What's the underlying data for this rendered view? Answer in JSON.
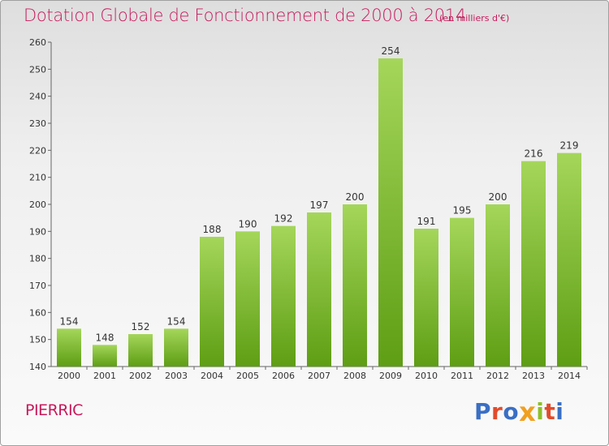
{
  "header": {
    "title": "Dotation Globale de Fonctionnement de 2000 à 2014",
    "unit": "(en milliers d'€)"
  },
  "footer": {
    "commune": "PIERRIC",
    "logo": "Proxiti"
  },
  "colors": {
    "title": "#c8195a",
    "bar_light": "#a4d65a",
    "bar_dark": "#5e9e14",
    "axis": "#666666",
    "logo_letters": [
      "#3a6fc4",
      "#e24b2b",
      "#3a6fc4",
      "#f0a020",
      "#8cbf2a",
      "#e24b2b",
      "#3a6fc4"
    ]
  },
  "chart_data": {
    "type": "bar",
    "categories": [
      "2000",
      "2001",
      "2002",
      "2003",
      "2004",
      "2005",
      "2006",
      "2007",
      "2008",
      "2009",
      "2010",
      "2011",
      "2012",
      "2013",
      "2014"
    ],
    "values": [
      154,
      148,
      152,
      154,
      188,
      190,
      192,
      197,
      200,
      254,
      191,
      195,
      200,
      216,
      219
    ],
    "ylim": [
      140,
      260
    ],
    "yticks": [
      140,
      150,
      160,
      170,
      180,
      190,
      200,
      210,
      220,
      230,
      240,
      250,
      260
    ],
    "grid": false,
    "legend": "none"
  }
}
